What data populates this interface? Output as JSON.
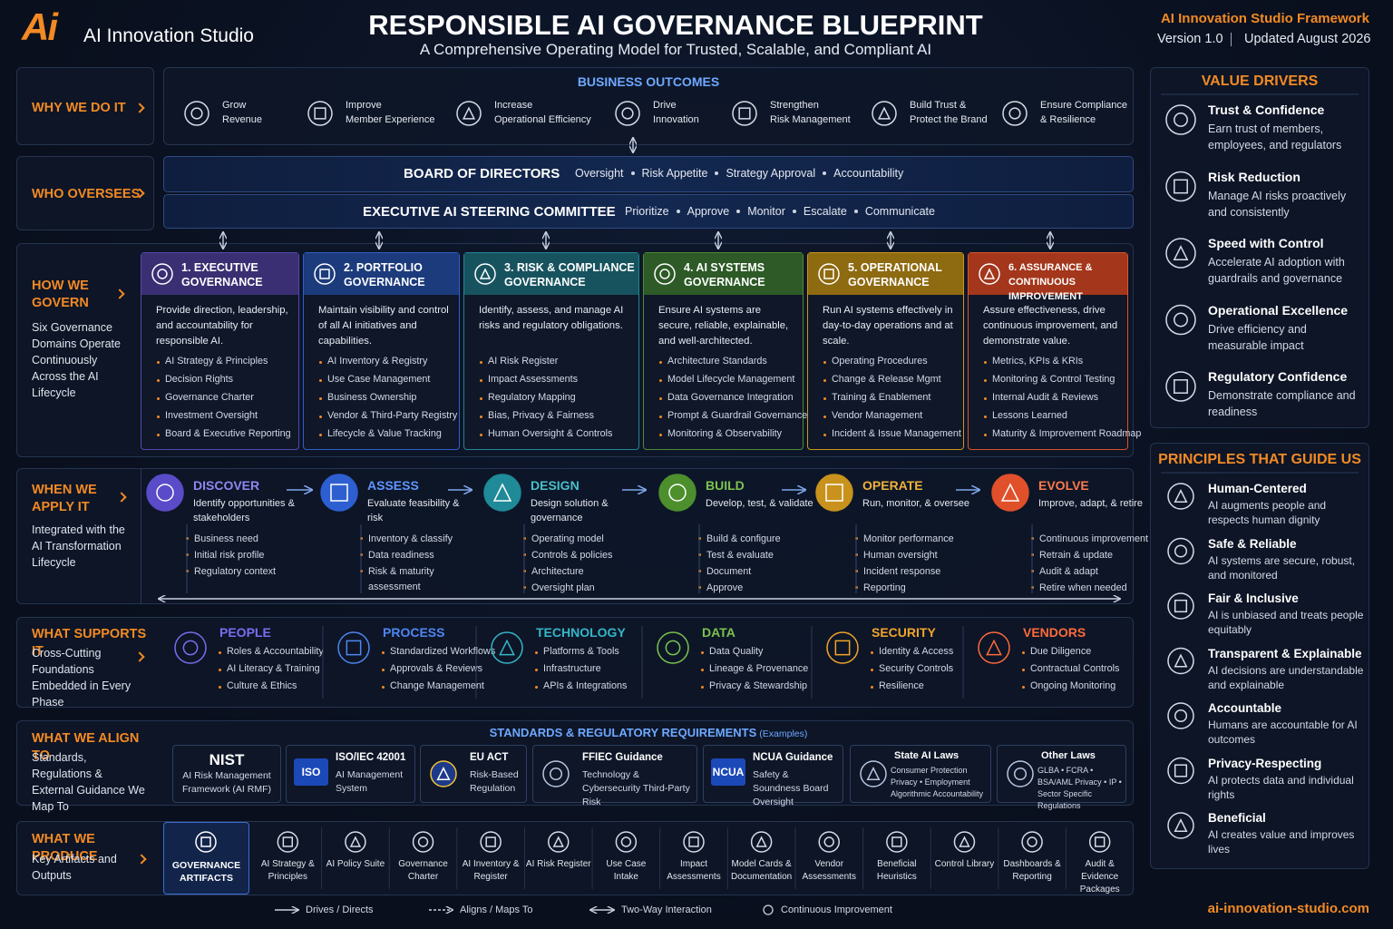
{
  "header": {
    "logo": "Ai",
    "brand": "AI Innovation Studio",
    "title": "RESPONSIBLE AI GOVERNANCE BLUEPRINT",
    "subtitle": "A Comprehensive Operating Model for Trusted, Scalable, and Compliant AI",
    "framework": "AI Innovation Studio Framework",
    "version": "Version 1.0",
    "updated": "Updated August 2026"
  },
  "why": {
    "label": "WHY WE DO IT",
    "heading": "BUSINESS OUTCOMES",
    "outcomes": [
      [
        "Grow",
        "Revenue"
      ],
      [
        "Improve",
        "Member Experience"
      ],
      [
        "Increase",
        "Operational Efficiency"
      ],
      [
        "Drive",
        "Innovation"
      ],
      [
        "Strengthen",
        "Risk Management"
      ],
      [
        "Build Trust &",
        "Protect the Brand"
      ],
      [
        "Ensure Compliance",
        "& Resilience"
      ]
    ]
  },
  "who": {
    "label": "WHO OVERSEES",
    "board": {
      "title": "BOARD OF DIRECTORS",
      "items": [
        "Oversight",
        "Risk Appetite",
        "Strategy Approval",
        "Accountability"
      ]
    },
    "committee": {
      "title": "EXECUTIVE AI STEERING COMMITTEE",
      "items": [
        "Prioritize",
        "Approve",
        "Monitor",
        "Escalate",
        "Communicate"
      ]
    }
  },
  "how": {
    "label": "HOW WE GOVERN",
    "note": "Six Governance Domains Operate Continuously Across the AI Lifecycle",
    "domains": [
      {
        "title": "1. EXECUTIVE GOVERNANCE",
        "desc": "Provide direction, leadership, and accountability for responsible AI.",
        "items": [
          "AI Strategy & Principles",
          "Decision Rights",
          "Governance Charter",
          "Investment Oversight",
          "Board & Executive Reporting"
        ]
      },
      {
        "title": "2. PORTFOLIO GOVERNANCE",
        "desc": "Maintain visibility and control of all AI initiatives and capabilities.",
        "items": [
          "AI Inventory & Registry",
          "Use Case Management",
          "Business Ownership",
          "Vendor & Third-Party Registry",
          "Lifecycle & Value Tracking"
        ]
      },
      {
        "title": "3. RISK & COMPLIANCE GOVERNANCE",
        "desc": "Identify, assess, and manage AI risks and regulatory obligations.",
        "items": [
          "AI Risk Register",
          "Impact Assessments",
          "Regulatory Mapping",
          "Bias, Privacy & Fairness",
          "Human Oversight & Controls"
        ]
      },
      {
        "title": "4. AI SYSTEMS GOVERNANCE",
        "desc": "Ensure AI systems are secure, reliable, explainable, and well-architected.",
        "items": [
          "Architecture Standards",
          "Model Lifecycle Management",
          "Data Governance Integration",
          "Prompt & Guardrail Governance",
          "Monitoring & Observability"
        ]
      },
      {
        "title": "5. OPERATIONAL GOVERNANCE",
        "desc": "Run AI systems effectively in day-to-day operations and at scale.",
        "items": [
          "Operating Procedures",
          "Change & Release Mgmt",
          "Training & Enablement",
          "Vendor Management",
          "Incident & Issue Management"
        ]
      },
      {
        "title": "6. ASSURANCE & CONTINUOUS IMPROVEMENT",
        "desc": "Assure effectiveness, drive continuous improvement, and demonstrate value.",
        "items": [
          "Metrics, KPIs & KRIs",
          "Monitoring & Control Testing",
          "Internal Audit & Reviews",
          "Lessons Learned",
          "Maturity & Improvement Roadmap"
        ]
      }
    ]
  },
  "when": {
    "label": "WHEN WE APPLY IT",
    "note": "Integrated with the AI Transformation Lifecycle",
    "phases": [
      {
        "name": "DISCOVER",
        "desc": "Identify opportunities & stakeholders",
        "items": [
          "Business need",
          "Initial risk profile",
          "Regulatory context"
        ]
      },
      {
        "name": "ASSESS",
        "desc": "Evaluate feasibility & risk",
        "items": [
          "Inventory & classify",
          "Data readiness",
          "Risk & maturity assessment"
        ]
      },
      {
        "name": "DESIGN",
        "desc": "Design solution & governance",
        "items": [
          "Operating model",
          "Controls & policies",
          "Architecture",
          "Oversight plan"
        ]
      },
      {
        "name": "BUILD",
        "desc": "Develop, test, & validate",
        "items": [
          "Build & configure",
          "Test & evaluate",
          "Document",
          "Approve"
        ]
      },
      {
        "name": "OPERATE",
        "desc": "Run, monitor, & oversee",
        "items": [
          "Monitor performance",
          "Human oversight",
          "Incident response",
          "Reporting"
        ]
      },
      {
        "name": "EVOLVE",
        "desc": "Improve, adapt, & retire",
        "items": [
          "Continuous improvement",
          "Retrain & update",
          "Audit & adapt",
          "Retire when needed"
        ]
      }
    ]
  },
  "supports": {
    "label": "WHAT SUPPORTS IT",
    "note": "Cross-Cutting Foundations Embedded in Every Phase",
    "pillars": [
      {
        "name": "PEOPLE",
        "items": [
          "Roles & Accountability",
          "AI Literacy & Training",
          "Culture & Ethics"
        ]
      },
      {
        "name": "PROCESS",
        "items": [
          "Standardized Workflows",
          "Approvals & Reviews",
          "Change Management"
        ]
      },
      {
        "name": "TECHNOLOGY",
        "items": [
          "Platforms & Tools",
          "Infrastructure",
          "APIs & Integrations"
        ]
      },
      {
        "name": "DATA",
        "items": [
          "Data Quality",
          "Lineage & Provenance",
          "Privacy & Stewardship"
        ]
      },
      {
        "name": "SECURITY",
        "items": [
          "Identity & Access",
          "Security Controls",
          "Resilience"
        ]
      },
      {
        "name": "VENDORS",
        "items": [
          "Due Diligence",
          "Contractual Controls",
          "Ongoing Monitoring"
        ]
      }
    ]
  },
  "align": {
    "label": "WHAT WE ALIGN TO",
    "note": "Standards, Regulations & External Guidance We Map To",
    "heading": "STANDARDS & REGULATORY REQUIREMENTS",
    "heading_note": "(Examples)",
    "standards": [
      {
        "name": "NIST",
        "desc": "AI Risk Management Framework (AI RMF)"
      },
      {
        "badge": "ISO",
        "name": "ISO/IEC 42001",
        "desc": "AI Management System"
      },
      {
        "name": "EU ACT",
        "desc": "Risk-Based Regulation"
      },
      {
        "name": "FFIEC Guidance",
        "desc": "Technology & Cybersecurity Third-Party Risk"
      },
      {
        "badge": "NCUA",
        "name": "NCUA Guidance",
        "desc": "Safety & Soundness Board Oversight"
      },
      {
        "name": "State AI Laws",
        "desc": "Consumer Protection Privacy • Employment Algorithmic Accountability"
      },
      {
        "name": "Other Laws",
        "desc": "GLBA • FCRA • BSA/AML Privacy • IP • Sector Specific Regulations"
      }
    ]
  },
  "produce": {
    "label": "WHAT WE PRODUCE",
    "note": "Key Artifacts and Outputs",
    "highlight": "GOVERNANCE ARTIFACTS",
    "artifacts": [
      "AI Strategy & Principles",
      "AI Policy Suite",
      "Governance Charter",
      "AI Inventory & Register",
      "AI Risk Register",
      "Use Case Intake",
      "Impact Assessments",
      "Model Cards & Documentation",
      "Vendor Assessments",
      "Beneficial Heuristics",
      "Control Library",
      "Dashboards & Reporting",
      "Audit & Evidence Packages"
    ]
  },
  "legend": [
    "Drives / Directs",
    "Aligns / Maps To",
    "Two-Way Interaction",
    "Continuous Improvement"
  ],
  "sidebar": {
    "value_drivers": {
      "title": "VALUE DRIVERS",
      "items": [
        {
          "name": "Trust & Confidence",
          "desc": "Earn trust of members, employees, and regulators"
        },
        {
          "name": "Risk Reduction",
          "desc": "Manage AI risks proactively and consistently"
        },
        {
          "name": "Speed with Control",
          "desc": "Accelerate AI adoption with guardrails and governance"
        },
        {
          "name": "Operational Excellence",
          "desc": "Drive efficiency and measurable impact"
        },
        {
          "name": "Regulatory Confidence",
          "desc": "Demonstrate compliance and readiness"
        }
      ]
    },
    "principles": {
      "title": "PRINCIPLES THAT GUIDE US",
      "items": [
        {
          "name": "Human-Centered",
          "desc": "AI augments people and respects human dignity"
        },
        {
          "name": "Safe & Reliable",
          "desc": "AI systems are secure, robust, and monitored"
        },
        {
          "name": "Fair & Inclusive",
          "desc": "AI is unbiased and treats people equitably"
        },
        {
          "name": "Transparent & Explainable",
          "desc": "AI decisions are understandable and explainable"
        },
        {
          "name": "Accountable",
          "desc": "Humans are accountable for AI outcomes"
        },
        {
          "name": "Privacy-Respecting",
          "desc": "AI protects data and individual rights"
        },
        {
          "name": "Beneficial",
          "desc": "AI creates value and improves lives"
        }
      ]
    }
  },
  "footer": {
    "url": "ai-innovation-studio.com"
  }
}
